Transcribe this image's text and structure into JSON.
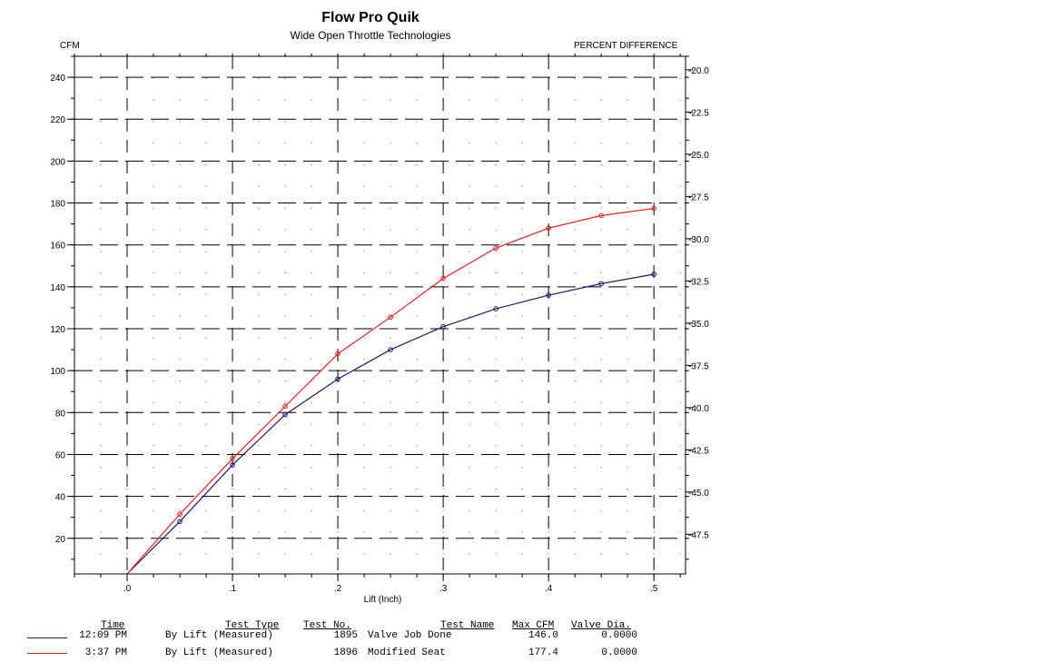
{
  "chart_data": {
    "type": "line",
    "title": "Flow Pro Quik",
    "subtitle": "Wide Open Throttle Technologies",
    "xlabel": "Lift (Inch)",
    "ylabel": "CFM",
    "y2label": "PERCENT DIFFERENCE",
    "xlim": [
      -0.05,
      0.53
    ],
    "ylim": [
      3,
      250
    ],
    "y2lim": [
      49.85,
      19.2
    ],
    "x_ticks": [
      0.0,
      0.1,
      0.2,
      0.3,
      0.4,
      0.5
    ],
    "x_tick_labels": [
      ".0",
      ".1",
      ".2",
      ".3",
      ".4",
      ".5"
    ],
    "y_ticks": [
      20,
      40,
      60,
      80,
      100,
      120,
      140,
      160,
      180,
      200,
      220,
      240
    ],
    "y_tick_labels": [
      "20",
      "40",
      "60",
      "80",
      "100",
      "120",
      "140",
      "160",
      "180",
      "200",
      "220",
      "240"
    ],
    "y2_ticks": [
      -47.5,
      -45.0,
      -42.5,
      -40.0,
      -37.5,
      -35.0,
      -32.5,
      -30.0,
      -27.5,
      -25.0,
      -22.5,
      -20.0
    ],
    "y2_tick_labels": [
      "-47.5",
      "-45.0",
      "-42.5",
      "-40.0",
      "-37.5",
      "-35.0",
      "-32.5",
      "-30.0",
      "-27.5",
      "-25.0",
      "-22.5",
      "-20.0"
    ],
    "grid": true,
    "series": [
      {
        "color": "#1a1a6e",
        "x": [
          0.0,
          0.05,
          0.1,
          0.15,
          0.2,
          0.25,
          0.3,
          0.35,
          0.4,
          0.45,
          0.5
        ],
        "y": [
          3,
          28,
          55,
          79,
          96,
          110,
          121,
          129.5,
          136,
          141.5,
          146
        ]
      },
      {
        "color": "#e02020",
        "x": [
          0.0,
          0.05,
          0.1,
          0.15,
          0.2,
          0.25,
          0.3,
          0.35,
          0.4,
          0.45,
          0.5
        ],
        "y": [
          3,
          31.5,
          58,
          83,
          108,
          125.5,
          144,
          158.5,
          168,
          174,
          177.4
        ]
      }
    ]
  },
  "legend": {
    "headers": {
      "time": "Time",
      "test_type": "Test Type",
      "test_no": "Test No.",
      "test_name": "Test Name",
      "max_cfm": "Max CFM",
      "valve_dia": "Valve Dia."
    },
    "rows": [
      {
        "color": "#1a1a6e",
        "time": "12:09 PM",
        "test_type": "By Lift (Measured)",
        "test_no": "1895",
        "test_name": "Valve Job Done",
        "max_cfm": "146.0",
        "valve_dia": "0.0000"
      },
      {
        "color": "#e02020",
        "time": "3:37 PM",
        "test_type": "By Lift (Measured)",
        "test_no": "1896",
        "test_name": "Modified Seat",
        "max_cfm": "177.4",
        "valve_dia": "0.0000"
      }
    ]
  }
}
